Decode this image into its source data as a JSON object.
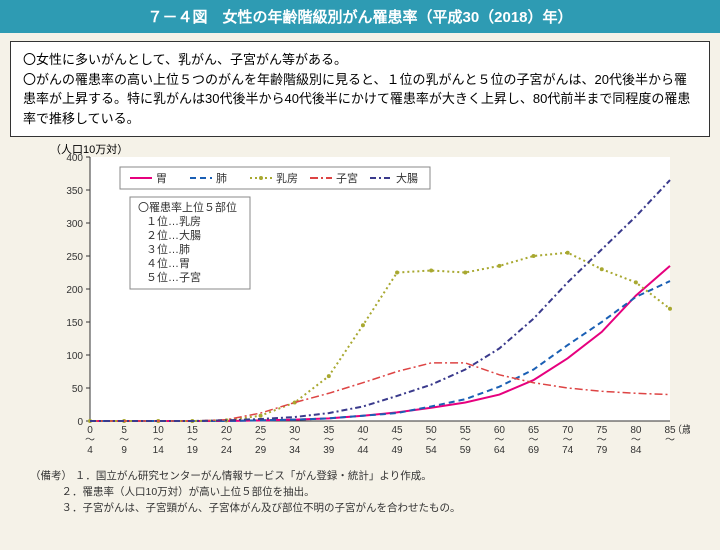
{
  "title": "７－４図　女性の年齢階級別がん罹患率（平成30（2018）年）",
  "notes": [
    "〇女性に多いがんとして、乳がん、子宮がん等がある。",
    "〇がんの罹患率の高い上位５つのがんを年齢階級別に見ると、１位の乳がんと５位の子宮がんは、20代後半から罹患率が上昇する。特に乳がんは30代後半から40代後半にかけて罹患率が大きく上昇し、80代前半まで同程度の罹患率で推移している。"
  ],
  "chart": {
    "y_axis_label": "（人口10万対）",
    "x_axis_suffix": "（歳）",
    "ylim": [
      0,
      400
    ],
    "ytick_step": 50,
    "categories": [
      "0〜4",
      "5〜9",
      "10〜14",
      "15〜19",
      "20〜24",
      "25〜29",
      "30〜34",
      "35〜39",
      "40〜44",
      "45〜49",
      "50〜54",
      "55〜59",
      "60〜64",
      "65〜69",
      "70〜74",
      "75〜79",
      "80〜84",
      "85〜"
    ],
    "plot_bg": "#ffffff",
    "series": [
      {
        "name": "胃",
        "color": "#e6007e",
        "dash": "",
        "width": 2,
        "dot": false,
        "values": [
          0,
          0,
          0,
          0,
          0,
          1,
          2,
          4,
          8,
          13,
          20,
          28,
          40,
          62,
          95,
          135,
          190,
          235
        ]
      },
      {
        "name": "肺",
        "color": "#1a5fb4",
        "dash": "6,4",
        "width": 2,
        "dot": false,
        "values": [
          0,
          0,
          0,
          0,
          0,
          1,
          2,
          4,
          8,
          12,
          22,
          33,
          52,
          78,
          115,
          150,
          188,
          212
        ]
      },
      {
        "name": "乳房",
        "color": "#a8a830",
        "dash": "2,3",
        "width": 2,
        "dot": true,
        "values": [
          0,
          0,
          0,
          0,
          1,
          8,
          28,
          68,
          145,
          225,
          228,
          225,
          235,
          250,
          255,
          230,
          210,
          170
        ]
      },
      {
        "name": "子宮",
        "color": "#d44",
        "dash": "8,3,2,3",
        "width": 1.5,
        "dot": false,
        "values": [
          0,
          0,
          0,
          0,
          2,
          12,
          28,
          42,
          58,
          75,
          88,
          88,
          70,
          58,
          50,
          45,
          42,
          40
        ]
      },
      {
        "name": "大腸",
        "color": "#3a3a8c",
        "dash": "6,3,2,3",
        "width": 2,
        "dot": false,
        "values": [
          0,
          0,
          0,
          0,
          1,
          3,
          6,
          12,
          22,
          38,
          55,
          78,
          110,
          155,
          210,
          260,
          310,
          365
        ]
      }
    ],
    "ranking": {
      "title": "〇罹患率上位５部位",
      "items": [
        "１位…乳房",
        "２位…大腸",
        "３位…肺",
        "４位…胃",
        "５位…子宮"
      ]
    }
  },
  "footnotes": {
    "label": "（備考）",
    "items": [
      "１．国立がん研究センターがん情報サービス「がん登録・統計」より作成。",
      "２．罹患率（人口10万対）が高い上位５部位を抽出。",
      "３．子宮がんは、子宮頸がん、子宮体がん及び部位不明の子宮がんを合わせたもの。"
    ]
  }
}
